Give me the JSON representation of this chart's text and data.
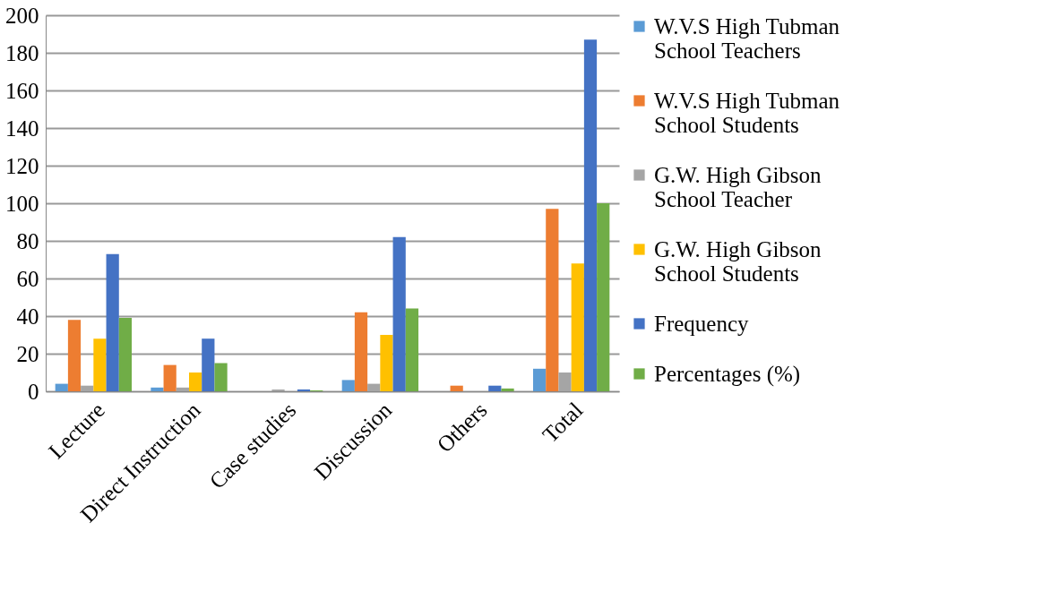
{
  "chart_data": {
    "type": "bar",
    "categories": [
      "Lecture",
      "Direct Instruction",
      "Case studies",
      "Discussion",
      "Others",
      "Total"
    ],
    "series": [
      {
        "name": "W.V.S High Tubman School Teachers",
        "color": "#5b9bd5",
        "values": [
          4,
          2,
          0,
          6,
          0,
          12
        ]
      },
      {
        "name": "W.V.S High Tubman School  Students",
        "color": "#ed7d31",
        "values": [
          38,
          14,
          0,
          42,
          3,
          97
        ]
      },
      {
        "name": "G.W. High Gibson School Teacher",
        "color": "#a5a5a5",
        "values": [
          3,
          2,
          1,
          4,
          0,
          10
        ]
      },
      {
        "name": "G.W. High Gibson School Students",
        "color": "#ffc000",
        "values": [
          28,
          10,
          0,
          30,
          0,
          68
        ]
      },
      {
        "name": "Frequency",
        "color": "#4472c4",
        "values": [
          73,
          28,
          1,
          82,
          3,
          187
        ]
      },
      {
        "name": "Percentages (%)",
        "color": "#70ad47",
        "values": [
          39,
          15,
          0.5,
          44,
          1.5,
          100
        ]
      }
    ],
    "ylim": [
      0,
      200
    ],
    "yticks": [
      0,
      20,
      40,
      60,
      80,
      100,
      120,
      140,
      160,
      180,
      200
    ],
    "grid": "y",
    "legend": "right"
  }
}
